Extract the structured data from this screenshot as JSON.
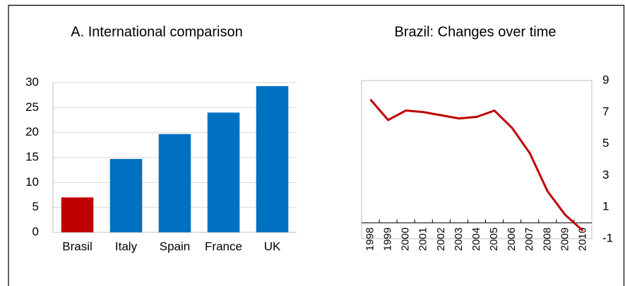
{
  "chart_data": [
    {
      "type": "bar",
      "title": "A. International comparison",
      "categories": [
        "Brasil",
        "Italy",
        "Spain",
        "France",
        "UK"
      ],
      "values": [
        7,
        14.7,
        19.7,
        24,
        29.3
      ],
      "colors": [
        "#c00000",
        "#0070c0",
        "#0070c0",
        "#0070c0",
        "#0070c0"
      ],
      "ylim": [
        0,
        30
      ],
      "yticks": [
        0,
        5,
        10,
        15,
        20,
        25,
        30
      ],
      "grid": true,
      "y_axis_side": "left"
    },
    {
      "type": "line",
      "title": "Brazil: Changes over time",
      "categories": [
        "1998",
        "1999",
        "2000",
        "2001",
        "2002",
        "2003",
        "2004",
        "2005",
        "2006",
        "2007",
        "2008",
        "2009",
        "2010"
      ],
      "values": [
        7.8,
        6.5,
        7.1,
        7.0,
        6.8,
        6.6,
        6.7,
        7.1,
        6.0,
        4.4,
        2.0,
        0.5,
        -0.5
      ],
      "color": "#c00000",
      "ylim": [
        -1,
        9
      ],
      "yticks": [
        -1,
        1,
        3,
        5,
        7,
        9
      ],
      "grid": false,
      "y_axis_side": "right"
    }
  ]
}
